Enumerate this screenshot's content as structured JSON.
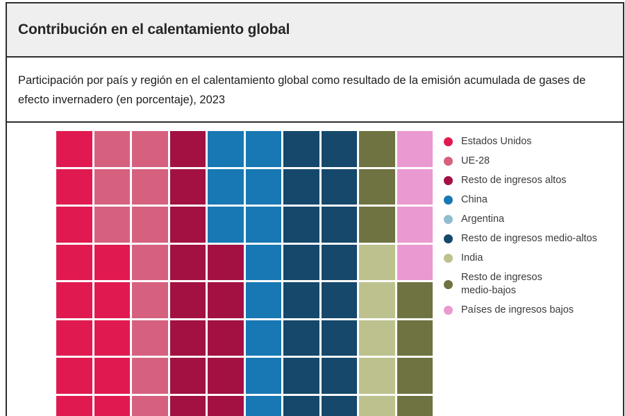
{
  "header": {
    "title": "Contribución en el calentamiento global"
  },
  "subtitle": "Participación por país y región en el calentamiento global como resultado de la emisión acumulada de gases de efecto invernadero (en porcentaje), 2023",
  "colors": {
    "frame_border": "#2d2d2d",
    "header_background": "#efefef",
    "grid_gap": "#ffffff"
  },
  "chart_data": {
    "type": "heatmap",
    "subtype": "waffle",
    "title": "Contribución en el calentamiento global",
    "subtitle": "Participación por país y región en el calentamiento global como resultado de la emisión acumulada de gases de efecto invernadero (en porcentaje), 2023",
    "year": "2023",
    "legend_position": "right",
    "grid_columns": 10,
    "visible_rows": 8,
    "categories": [
      {
        "key": "US",
        "label": "Estados Unidos",
        "color": "#e01a50"
      },
      {
        "key": "UE28",
        "label": "UE-28",
        "color": "#d5617f"
      },
      {
        "key": "ALT",
        "label": "Resto de ingresos altos",
        "color": "#a21141"
      },
      {
        "key": "CHN",
        "label": "China",
        "color": "#1878b4"
      },
      {
        "key": "ARG",
        "label": "Argentina",
        "color": "#90bdd1"
      },
      {
        "key": "MA",
        "label": "Resto de ingresos medio-altos",
        "color": "#15486b"
      },
      {
        "key": "IND",
        "label": "India",
        "color": "#bdc18d"
      },
      {
        "key": "MB",
        "label": "Resto de ingresos\nmedio-bajos",
        "color": "#6f7341"
      },
      {
        "key": "LOW",
        "label": "Países de ingresos bajos",
        "color": "#eb99d1"
      }
    ],
    "grid": {
      "rows": [
        [
          "US",
          "UE28",
          "UE28",
          "ALT",
          "CHN",
          "CHN",
          "MA",
          "MA",
          "MB",
          "LOW"
        ],
        [
          "US",
          "UE28",
          "UE28",
          "ALT",
          "CHN",
          "CHN",
          "MA",
          "MA",
          "MB",
          "LOW"
        ],
        [
          "US",
          "UE28",
          "UE28",
          "ALT",
          "CHN",
          "CHN",
          "MA",
          "MA",
          "MB",
          "LOW"
        ],
        [
          "US",
          "US",
          "UE28",
          "ALT",
          "ALT",
          "CHN",
          "MA",
          "MA",
          "IND",
          "LOW"
        ],
        [
          "US",
          "US",
          "UE28",
          "ALT",
          "ALT",
          "CHN",
          "MA",
          "MA",
          "IND",
          "MB"
        ],
        [
          "US",
          "US",
          "UE28",
          "ALT",
          "ALT",
          "CHN",
          "MA",
          "MA",
          "IND",
          "MB"
        ],
        [
          "US",
          "US",
          "UE28",
          "ALT",
          "ALT",
          "CHN",
          "MA",
          "MA",
          "IND",
          "MB"
        ],
        [
          "US",
          "US",
          "UE28",
          "ALT",
          "ALT",
          "CHN",
          "MA",
          "MA",
          "IND",
          "MB"
        ]
      ]
    }
  }
}
